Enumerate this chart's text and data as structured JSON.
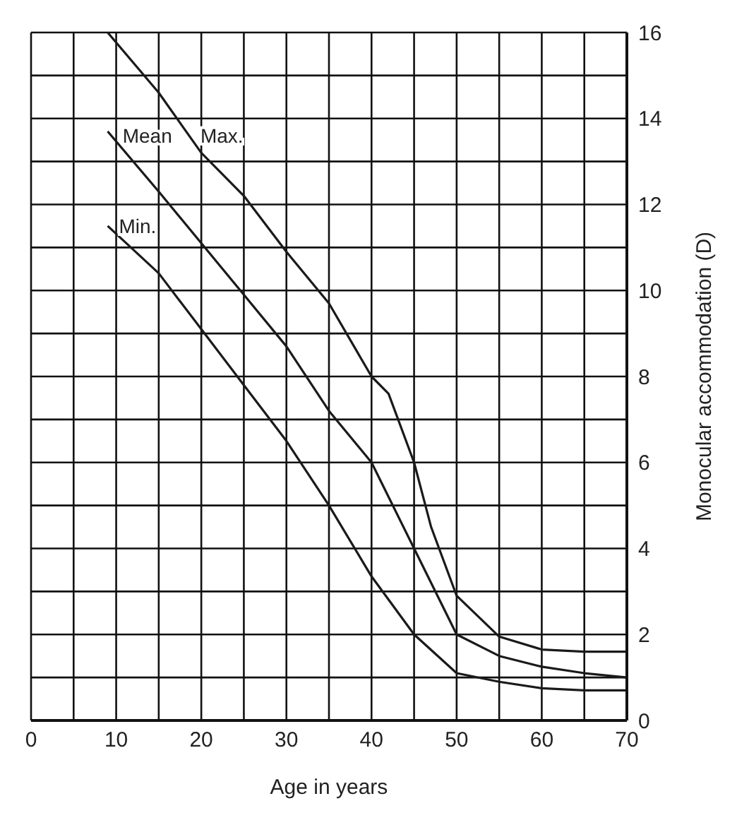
{
  "chart_data": {
    "type": "line",
    "xlabel": "Age in years",
    "ylabel": "Monocular accommodation (D)",
    "xlim": [
      0,
      70
    ],
    "ylim": [
      0,
      16
    ],
    "xticks": [
      0,
      {
        "value": 5,
        "label": null
      },
      10,
      {
        "value": 15,
        "label": null
      },
      20,
      {
        "value": 25,
        "label": null
      },
      30,
      {
        "value": 35,
        "label": null
      },
      40,
      {
        "value": 45,
        "label": null
      },
      50,
      {
        "value": 55,
        "label": null
      },
      60,
      {
        "value": 65,
        "label": null
      },
      70
    ],
    "yticks": [
      0,
      {
        "value": 1,
        "label": null
      },
      2,
      {
        "value": 3,
        "label": null
      },
      4,
      {
        "value": 5,
        "label": null
      },
      6,
      {
        "value": 7,
        "label": null
      },
      8,
      {
        "value": 9,
        "label": null
      },
      10,
      {
        "value": 11,
        "label": null
      },
      12,
      {
        "value": 13,
        "label": null
      },
      14,
      {
        "value": 15,
        "label": null
      },
      16
    ],
    "grid": true,
    "marker": "none",
    "line_style": "solid",
    "series": [
      {
        "name": "Max.",
        "color": "#1a1a1a",
        "x": [
          9,
          15,
          20,
          25,
          30,
          35,
          40,
          42,
          45,
          47,
          50,
          55,
          60,
          65,
          70
        ],
        "values": [
          16,
          14.6,
          13.2,
          12.2,
          10.9,
          9.7,
          8,
          7.6,
          6,
          4.5,
          2.9,
          1.95,
          1.65,
          1.6,
          1.6
        ]
      },
      {
        "name": "Mean",
        "color": "#1a1a1a",
        "x": [
          9,
          15,
          20,
          25,
          30,
          35,
          40,
          45,
          50,
          55,
          60,
          65,
          70
        ],
        "values": [
          13.7,
          12.3,
          11.1,
          9.9,
          8.7,
          7.2,
          6,
          4,
          2,
          1.5,
          1.25,
          1.1,
          1
        ]
      },
      {
        "name": "Min.",
        "color": "#1a1a1a",
        "x": [
          9,
          15,
          20,
          25,
          30,
          35,
          40,
          45,
          50,
          55,
          60,
          65,
          70
        ],
        "values": [
          11.5,
          10.4,
          9.1,
          7.8,
          6.5,
          5,
          3.35,
          2,
          1.1,
          0.9,
          0.75,
          0.7,
          0.7
        ]
      }
    ]
  }
}
